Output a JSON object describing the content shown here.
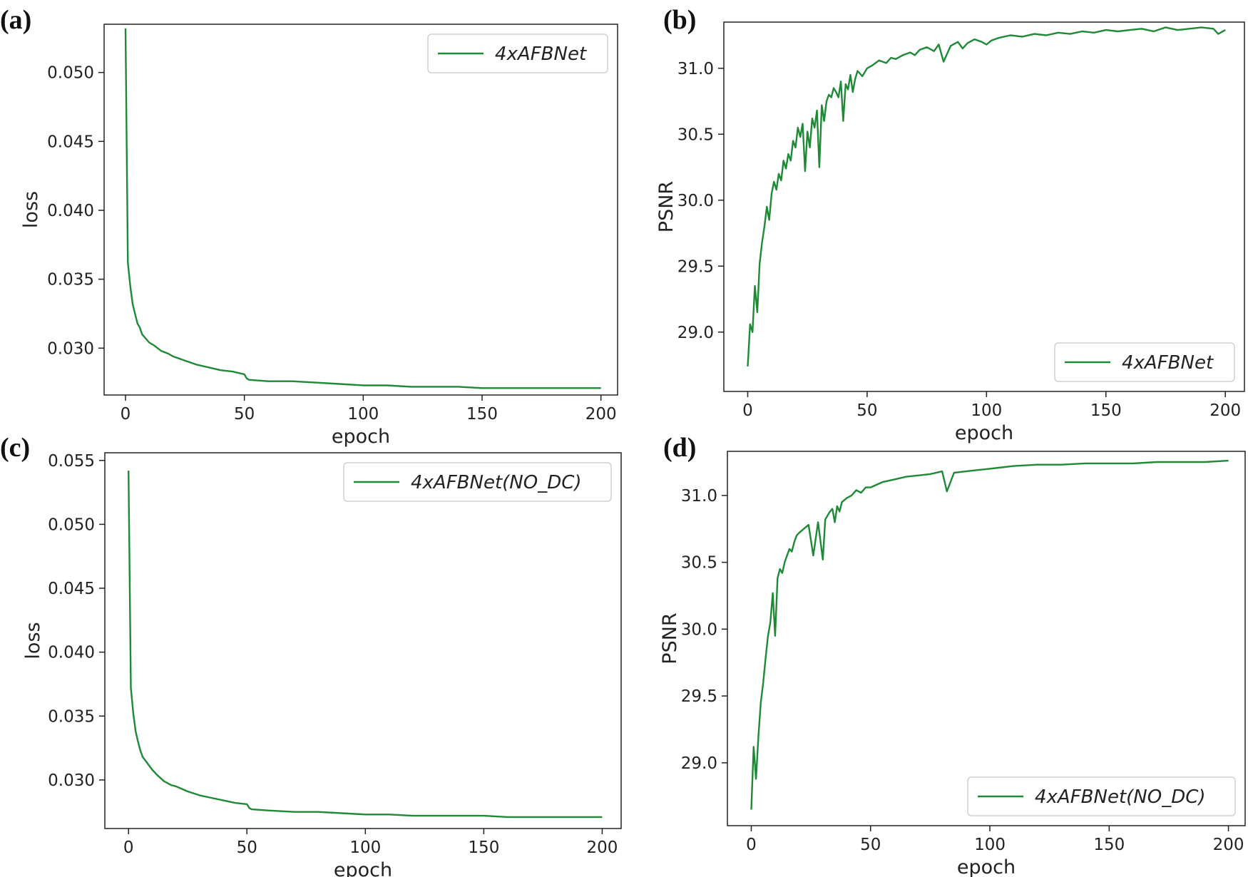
{
  "figure": {
    "line_color": "#1f8a36",
    "panels": [
      {
        "label": "(a)",
        "legend": "4xAFBNet"
      },
      {
        "label": "(b)",
        "legend": "4xAFBNet"
      },
      {
        "label": "(c)",
        "legend": "4xAFBNet(NO_DC)"
      },
      {
        "label": "(d)",
        "legend": "4xAFBNet(NO_DC)"
      }
    ]
  },
  "chart_data": [
    {
      "type": "line",
      "panel": "(a)",
      "xlabel": "epoch",
      "ylabel": "loss",
      "xlim": [
        -9,
        207
      ],
      "ylim": [
        0.0266,
        0.0535
      ],
      "xticks": [
        0,
        50,
        100,
        150,
        200
      ],
      "xtick_labels": [
        "0",
        "50",
        "100",
        "150",
        "200"
      ],
      "yticks": [
        0.03,
        0.035,
        0.04,
        0.045,
        0.05
      ],
      "ytick_labels": [
        "0.030",
        "0.035",
        "0.040",
        "0.045",
        "0.050"
      ],
      "legend_position": "upper right",
      "series": [
        {
          "name": "4xAFBNet",
          "x": [
            0,
            1,
            2,
            3,
            4,
            5,
            6,
            7,
            8,
            10,
            12,
            15,
            18,
            20,
            25,
            30,
            35,
            40,
            45,
            50,
            51,
            52,
            60,
            70,
            80,
            90,
            100,
            110,
            120,
            130,
            140,
            150,
            160,
            170,
            180,
            190,
            200
          ],
          "y": [
            0.0532,
            0.0362,
            0.0345,
            0.0332,
            0.0325,
            0.0318,
            0.0315,
            0.031,
            0.0308,
            0.0304,
            0.0302,
            0.0298,
            0.0296,
            0.0294,
            0.0291,
            0.0288,
            0.0286,
            0.0284,
            0.0283,
            0.0281,
            0.0278,
            0.0277,
            0.0276,
            0.0276,
            0.0275,
            0.0274,
            0.0273,
            0.0273,
            0.0272,
            0.0272,
            0.0272,
            0.0271,
            0.0271,
            0.0271,
            0.0271,
            0.0271,
            0.0271
          ]
        }
      ]
    },
    {
      "type": "line",
      "panel": "(b)",
      "xlabel": "epoch",
      "ylabel": "PSNR",
      "xlim": [
        -10,
        208
      ],
      "ylim": [
        28.55,
        31.35
      ],
      "xticks": [
        0,
        50,
        100,
        150,
        200
      ],
      "xtick_labels": [
        "0",
        "50",
        "100",
        "150",
        "200"
      ],
      "yticks": [
        29.0,
        29.5,
        30.0,
        30.5,
        31.0
      ],
      "ytick_labels": [
        "29.0",
        "29.5",
        "30.0",
        "30.5",
        "31.0"
      ],
      "legend_position": "lower right",
      "series": [
        {
          "name": "4xAFBNet",
          "x": [
            0,
            1,
            2,
            3,
            4,
            5,
            6,
            7,
            8,
            9,
            10,
            11,
            12,
            13,
            14,
            15,
            16,
            17,
            18,
            19,
            20,
            21,
            22,
            23,
            24,
            25,
            26,
            27,
            28,
            29,
            30,
            31,
            32,
            33,
            34,
            35,
            36,
            37,
            38,
            39,
            40,
            41,
            42,
            43,
            44,
            45,
            46,
            48,
            50,
            52,
            55,
            58,
            60,
            62,
            65,
            68,
            70,
            72,
            75,
            78,
            80,
            82,
            85,
            88,
            90,
            92,
            95,
            98,
            100,
            102,
            105,
            110,
            115,
            120,
            125,
            130,
            135,
            140,
            145,
            150,
            155,
            160,
            165,
            170,
            175,
            180,
            185,
            190,
            195,
            197,
            200
          ],
          "y": [
            28.74,
            29.06,
            29.0,
            29.35,
            29.15,
            29.52,
            29.68,
            29.8,
            29.95,
            29.85,
            30.05,
            30.14,
            30.08,
            30.2,
            30.15,
            30.3,
            30.24,
            30.35,
            30.3,
            30.45,
            30.4,
            30.55,
            30.48,
            30.58,
            30.22,
            30.52,
            30.4,
            30.62,
            30.55,
            30.68,
            30.25,
            30.72,
            30.6,
            30.75,
            30.8,
            30.78,
            30.85,
            30.82,
            30.78,
            30.9,
            30.6,
            30.88,
            30.84,
            30.95,
            30.82,
            30.92,
            30.98,
            30.94,
            31.0,
            31.02,
            31.06,
            31.04,
            31.08,
            31.07,
            31.1,
            31.12,
            31.1,
            31.14,
            31.16,
            31.13,
            31.18,
            31.05,
            31.17,
            31.2,
            31.15,
            31.19,
            31.22,
            31.2,
            31.18,
            31.21,
            31.23,
            31.25,
            31.24,
            31.26,
            31.25,
            31.27,
            31.26,
            31.28,
            31.27,
            31.29,
            31.28,
            31.29,
            31.3,
            31.28,
            31.31,
            31.29,
            31.3,
            31.31,
            31.3,
            31.26,
            31.29
          ]
        }
      ]
    },
    {
      "type": "line",
      "panel": "(c)",
      "xlabel": "epoch",
      "ylabel": "loss",
      "xlim": [
        -10,
        208
      ],
      "ylim": [
        0.0262,
        0.0556
      ],
      "xticks": [
        0,
        50,
        100,
        150,
        200
      ],
      "xtick_labels": [
        "0",
        "50",
        "100",
        "150",
        "200"
      ],
      "yticks": [
        0.03,
        0.035,
        0.04,
        0.045,
        0.05,
        0.055
      ],
      "ytick_labels": [
        "0.030",
        "0.035",
        "0.040",
        "0.045",
        "0.050",
        "0.055"
      ],
      "legend_position": "upper right",
      "series": [
        {
          "name": "4xAFBNet(NO_DC)",
          "x": [
            0,
            1,
            2,
            3,
            4,
            5,
            6,
            8,
            10,
            12,
            15,
            18,
            20,
            25,
            30,
            35,
            40,
            45,
            50,
            51,
            52,
            60,
            70,
            80,
            90,
            100,
            110,
            120,
            130,
            140,
            150,
            160,
            170,
            180,
            190,
            200
          ],
          "y": [
            0.0542,
            0.0372,
            0.0352,
            0.0338,
            0.033,
            0.0323,
            0.0318,
            0.0313,
            0.0308,
            0.0304,
            0.0299,
            0.0296,
            0.0295,
            0.0291,
            0.0288,
            0.0286,
            0.0284,
            0.0282,
            0.0281,
            0.0278,
            0.0277,
            0.0276,
            0.0275,
            0.0275,
            0.0274,
            0.0273,
            0.0273,
            0.0272,
            0.0272,
            0.0272,
            0.0272,
            0.0271,
            0.0271,
            0.0271,
            0.0271,
            0.0271
          ]
        }
      ]
    },
    {
      "type": "line",
      "panel": "(d)",
      "xlabel": "epoch",
      "ylabel": "PSNR",
      "xlim": [
        -10,
        207
      ],
      "ylim": [
        28.53,
        31.33
      ],
      "xticks": [
        0,
        50,
        100,
        150,
        200
      ],
      "xtick_labels": [
        "0",
        "50",
        "100",
        "150",
        "200"
      ],
      "yticks": [
        29.0,
        29.5,
        30.0,
        30.5,
        31.0
      ],
      "ytick_labels": [
        "29.0",
        "29.5",
        "30.0",
        "30.5",
        "31.0"
      ],
      "legend_position": "lower right",
      "series": [
        {
          "name": "4xAFBNet(NO_DC)",
          "x": [
            0,
            1,
            2,
            3,
            4,
            5,
            6,
            7,
            8,
            9,
            10,
            11,
            12,
            13,
            14,
            15,
            16,
            17,
            18,
            19,
            20,
            22,
            24,
            26,
            28,
            30,
            31,
            32,
            33,
            34,
            35,
            36,
            37,
            38,
            40,
            42,
            44,
            46,
            48,
            50,
            55,
            60,
            65,
            70,
            75,
            80,
            82,
            85,
            90,
            95,
            100,
            105,
            110,
            120,
            130,
            140,
            150,
            160,
            170,
            180,
            190,
            200
          ],
          "y": [
            28.65,
            29.12,
            28.88,
            29.2,
            29.45,
            29.6,
            29.78,
            29.95,
            30.05,
            30.27,
            29.95,
            30.38,
            30.45,
            30.42,
            30.5,
            30.55,
            30.6,
            30.58,
            30.65,
            30.7,
            30.72,
            30.75,
            30.78,
            30.55,
            30.8,
            30.52,
            30.82,
            30.85,
            30.88,
            30.9,
            30.8,
            30.92,
            30.88,
            30.95,
            30.98,
            31.0,
            31.04,
            31.02,
            31.06,
            31.06,
            31.1,
            31.12,
            31.14,
            31.15,
            31.16,
            31.18,
            31.03,
            31.17,
            31.18,
            31.19,
            31.2,
            31.21,
            31.22,
            31.23,
            31.23,
            31.24,
            31.24,
            31.24,
            31.25,
            31.25,
            31.25,
            31.26
          ]
        }
      ]
    }
  ]
}
